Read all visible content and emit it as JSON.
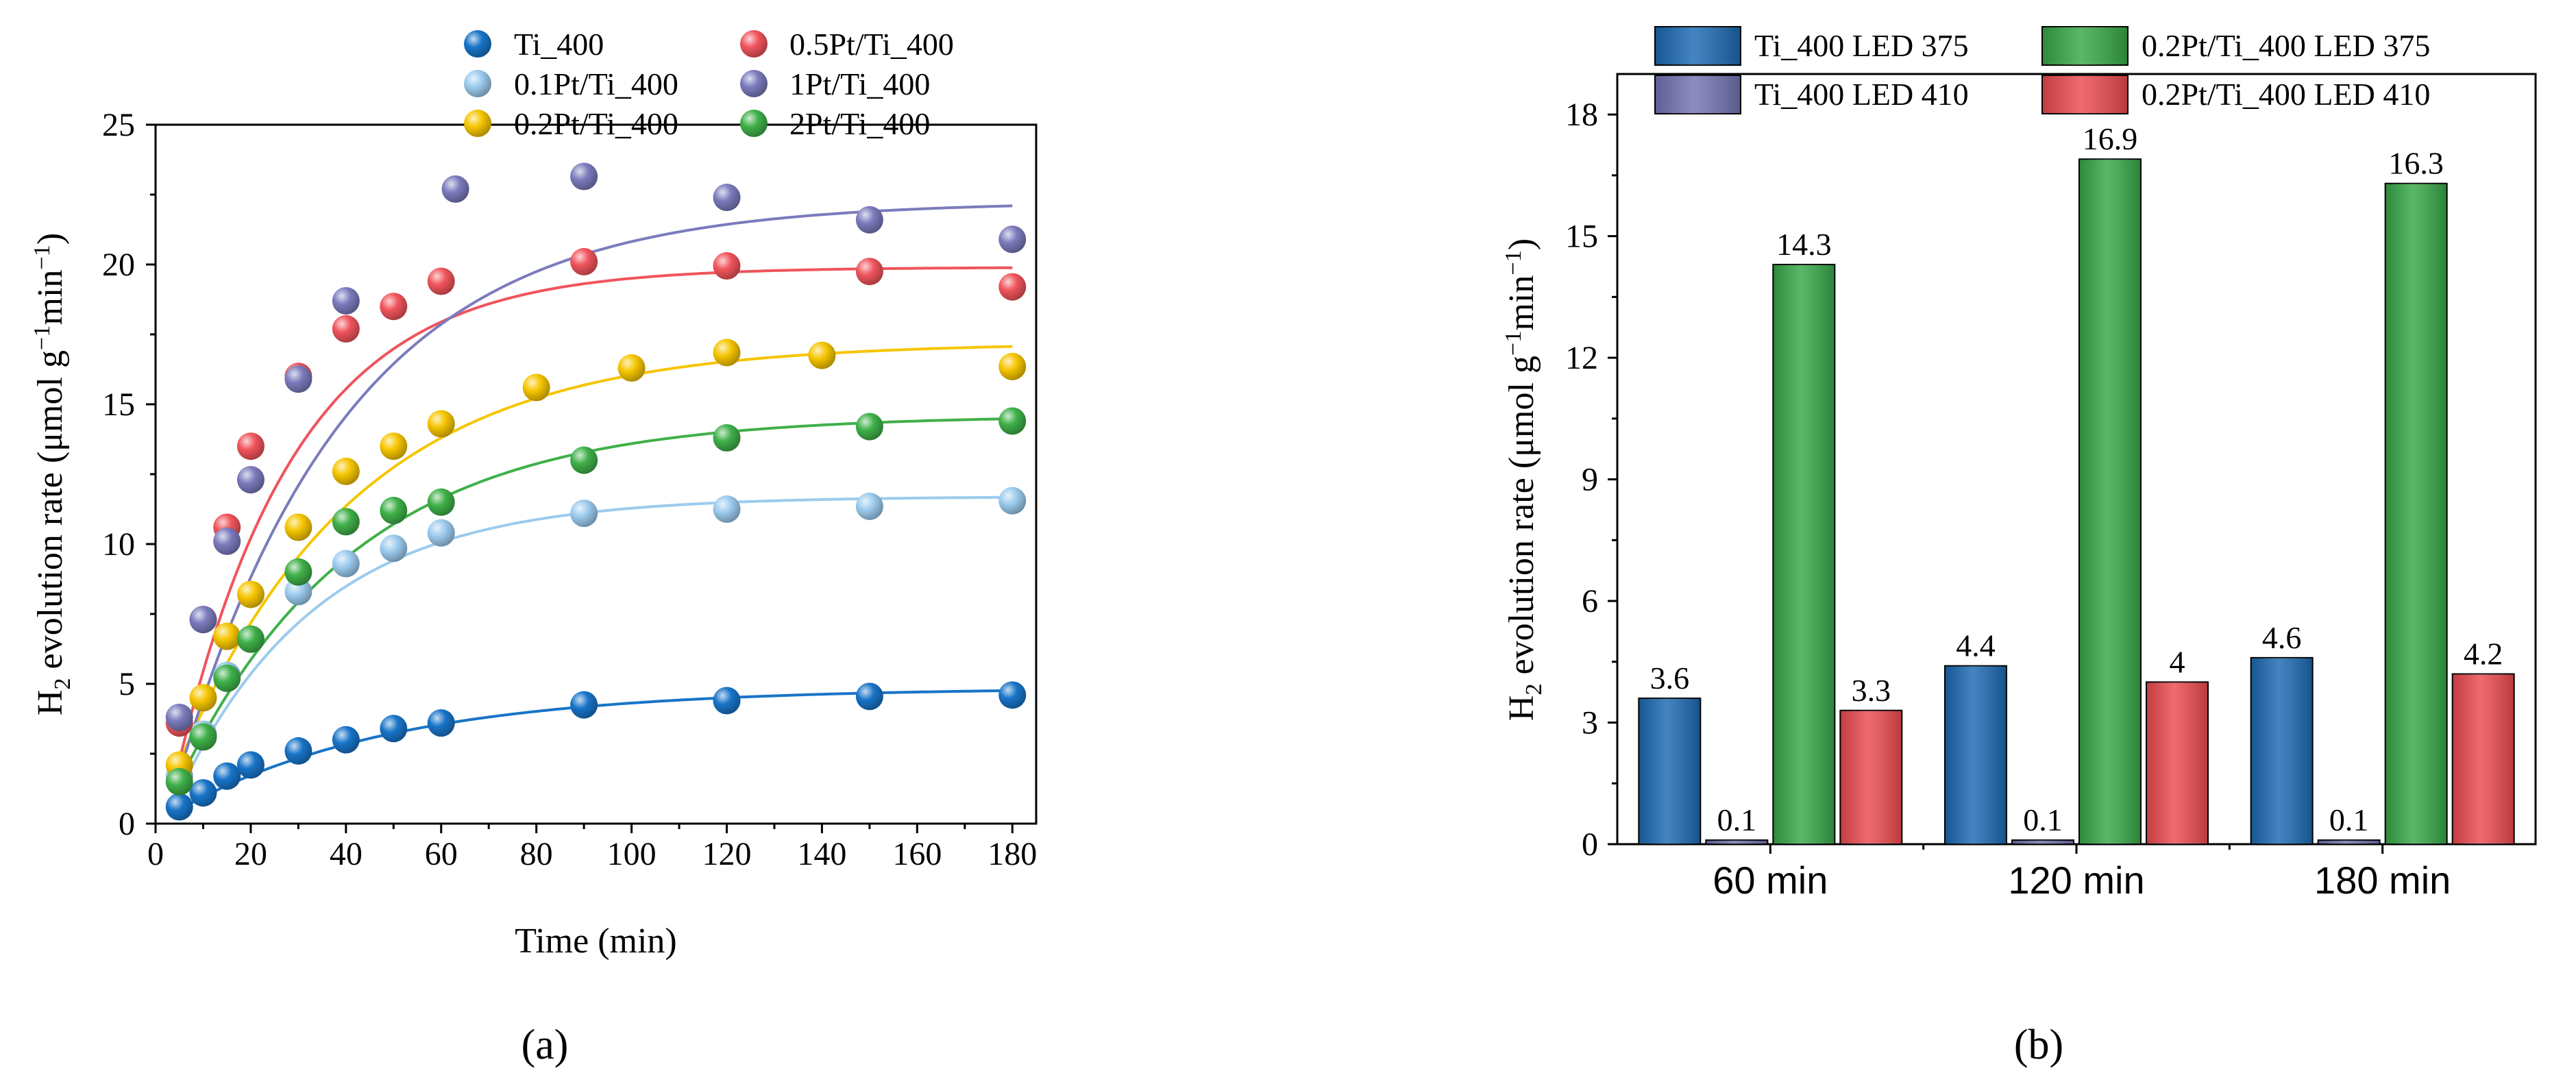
{
  "chart_data": [
    {
      "type": "scatter",
      "panel_label": "(a)",
      "xlabel": "Time (min)",
      "ylabel_main": "H",
      "ylabel_sub": "2",
      "ylabel_rest_1": " evolution rate (μmol g",
      "ylabel_sup_1": "−1",
      "ylabel_rest_2": "min",
      "ylabel_sup_2": "−1",
      "ylabel_close": ")",
      "xlim": [
        0,
        185
      ],
      "ylim": [
        0,
        25
      ],
      "xticks": [
        0,
        20,
        40,
        60,
        80,
        100,
        120,
        140,
        160,
        180
      ],
      "yticks": [
        0,
        5,
        10,
        15,
        20,
        25
      ],
      "legend_position": "top-center",
      "series": [
        {
          "name": "Ti_400",
          "color": "#1874c8",
          "points": [
            [
              5,
              0.6
            ],
            [
              10,
              1.1
            ],
            [
              15,
              1.7
            ],
            [
              20,
              2.1
            ],
            [
              30,
              2.6
            ],
            [
              40,
              3.0
            ],
            [
              50,
              3.4
            ],
            [
              60,
              3.6
            ],
            [
              90,
              4.25
            ],
            [
              120,
              4.4
            ],
            [
              150,
              4.55
            ],
            [
              180,
              4.6
            ]
          ],
          "fit": {
            "a": 4.85,
            "k": 0.022,
            "t0": 0
          }
        },
        {
          "name": "0.1Pt/Ti_400",
          "color": "#9ccbee",
          "points": [
            [
              5,
              1.7
            ],
            [
              10,
              3.2
            ],
            [
              15,
              5.3
            ],
            [
              20,
              6.6
            ],
            [
              30,
              8.3
            ],
            [
              40,
              9.3
            ],
            [
              50,
              9.85
            ],
            [
              60,
              10.4
            ],
            [
              90,
              11.1
            ],
            [
              120,
              11.25
            ],
            [
              150,
              11.35
            ],
            [
              180,
              11.55
            ]
          ],
          "fit": {
            "a": 11.7,
            "k": 0.034,
            "t0": 2
          }
        },
        {
          "name": "0.2Pt/Ti_400",
          "color": "#f6c500",
          "points": [
            [
              5,
              2.1
            ],
            [
              10,
              4.5
            ],
            [
              15,
              6.7
            ],
            [
              20,
              8.2
            ],
            [
              30,
              10.6
            ],
            [
              40,
              12.6
            ],
            [
              50,
              13.5
            ],
            [
              60,
              14.3
            ],
            [
              80,
              15.6
            ],
            [
              100,
              16.3
            ],
            [
              120,
              16.85
            ],
            [
              140,
              16.75
            ],
            [
              180,
              16.35
            ]
          ],
          "fit": {
            "a": 17.2,
            "k": 0.027,
            "t0": 0
          }
        },
        {
          "name": "2Pt/Ti_400",
          "color": "#3fb049",
          "points": [
            [
              5,
              1.5
            ],
            [
              10,
              3.1
            ],
            [
              15,
              5.2
            ],
            [
              20,
              6.6
            ],
            [
              30,
              9.0
            ],
            [
              40,
              10.8
            ],
            [
              50,
              11.2
            ],
            [
              60,
              11.5
            ],
            [
              90,
              13.0
            ],
            [
              120,
              13.8
            ],
            [
              150,
              14.2
            ],
            [
              180,
              14.4
            ]
          ],
          "fit": {
            "a": 14.6,
            "k": 0.027,
            "t0": 1
          }
        },
        {
          "name": "0.5Pt/Ti_400",
          "color": "#f0545c",
          "points": [
            [
              5,
              3.6
            ],
            [
              10,
              7.3
            ],
            [
              15,
              10.6
            ],
            [
              20,
              13.5
            ],
            [
              30,
              16.0
            ],
            [
              40,
              17.7
            ],
            [
              50,
              18.5
            ],
            [
              60,
              19.4
            ],
            [
              90,
              20.1
            ],
            [
              120,
              19.95
            ],
            [
              150,
              19.75
            ],
            [
              180,
              19.2
            ]
          ],
          "fit": {
            "a": 19.9,
            "k": 0.04,
            "t0": 2
          }
        },
        {
          "name": "1Pt/Ti_400",
          "color": "#7b7bbd",
          "points": [
            [
              5,
              3.8
            ],
            [
              10,
              7.3
            ],
            [
              15,
              10.1
            ],
            [
              20,
              12.3
            ],
            [
              30,
              15.9
            ],
            [
              40,
              18.7
            ],
            [
              63,
              22.7
            ],
            [
              90,
              23.15
            ],
            [
              120,
              22.4
            ],
            [
              150,
              21.6
            ],
            [
              180,
              20.9
            ]
          ],
          "fit": {
            "a": 22.25,
            "k": 0.028,
            "t0": 2
          }
        }
      ],
      "legend_left": [
        "Ti_400",
        "0.1Pt/Ti_400",
        "0.2Pt/Ti_400"
      ],
      "legend_right": [
        "0.5Pt/Ti_400",
        "1Pt/Ti_400",
        "2Pt/Ti_400"
      ]
    },
    {
      "type": "bar",
      "panel_label": "(b)",
      "categories": [
        "60 min",
        "120 min",
        "180 min"
      ],
      "ylabel_main": "H",
      "ylabel_sub": "2",
      "ylabel_rest_1": " evolution rate (μmol g",
      "ylabel_sup_1": "−1",
      "ylabel_rest_2": "min",
      "ylabel_sup_2": "−1",
      "ylabel_close": ")",
      "ylim": [
        0,
        19
      ],
      "yticks": [
        0,
        3,
        6,
        9,
        12,
        15,
        18
      ],
      "legend_position": "top",
      "series": [
        {
          "name": "Ti_400 LED 375",
          "color": "#1b69b3",
          "values": [
            3.6,
            4.4,
            4.6
          ],
          "labels": [
            "3.6",
            "4.4",
            "4.6"
          ]
        },
        {
          "name": "Ti_400 LED 410",
          "color": "#7373b4",
          "values": [
            0.1,
            0.1,
            0.1
          ],
          "labels": [
            "0.1",
            "0.1",
            "0.1"
          ]
        },
        {
          "name": "0.2Pt/Ti_400 LED 375",
          "color": "#36a847",
          "values": [
            14.3,
            16.9,
            16.3
          ],
          "labels": [
            "14.3",
            "16.9",
            "16.3"
          ]
        },
        {
          "name": "0.2Pt/Ti_400 LED 410",
          "color": "#ec4a4f",
          "values": [
            3.3,
            4.0,
            4.2
          ],
          "labels": [
            "3.3",
            "4",
            "4.2"
          ]
        }
      ]
    }
  ]
}
